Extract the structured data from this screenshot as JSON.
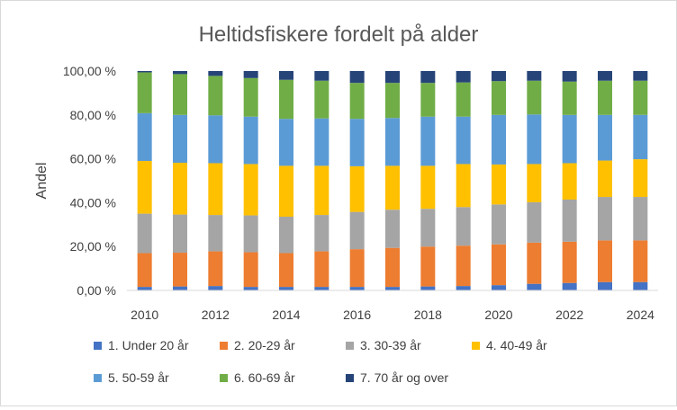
{
  "chart_data": {
    "type": "bar",
    "stacked": true,
    "title": "Heltidsfiskere fordelt på alder",
    "ylabel": "Andel",
    "xlabel": "",
    "ylim": [
      0,
      100
    ],
    "y_ticks": [
      "0,00 %",
      "20,00 %",
      "40,00 %",
      "60,00 %",
      "80,00 %",
      "100,00 %"
    ],
    "x_tick_labels": [
      "2010",
      "2012",
      "2014",
      "2016",
      "2018",
      "2020",
      "2022",
      "2024"
    ],
    "grid": false,
    "legend_position": "bottom",
    "categories": [
      "2010",
      "2011",
      "2012",
      "2013",
      "2014",
      "2015",
      "2016",
      "2017",
      "2018",
      "2019",
      "2020",
      "2021",
      "2022",
      "2023",
      "2024"
    ],
    "series": [
      {
        "name": "1. Under 20 år",
        "color": "#4472C4",
        "values": [
          1.6,
          1.8,
          2.0,
          1.6,
          1.6,
          1.6,
          1.6,
          1.6,
          1.8,
          2.0,
          2.4,
          3.0,
          3.4,
          3.8,
          3.8
        ]
      },
      {
        "name": "2. 20-29 år",
        "color": "#ED7D31",
        "values": [
          15.4,
          15.4,
          15.8,
          15.8,
          15.4,
          16.2,
          17.2,
          17.8,
          18.2,
          18.4,
          18.6,
          18.8,
          18.8,
          19.0,
          19.0
        ]
      },
      {
        "name": "3. 30-39 år",
        "color": "#A5A5A5",
        "values": [
          18.0,
          17.4,
          16.6,
          16.8,
          16.6,
          16.6,
          17.0,
          17.4,
          17.2,
          17.6,
          18.2,
          18.4,
          19.2,
          19.8,
          19.8
        ]
      },
      {
        "name": "4. 40-49 år",
        "color": "#FFC000",
        "values": [
          24.0,
          23.6,
          23.6,
          23.4,
          23.2,
          22.4,
          20.8,
          20.0,
          19.6,
          19.6,
          18.2,
          17.4,
          16.6,
          16.6,
          17.2
        ]
      },
      {
        "name": "5. 50-59 år",
        "color": "#5B9BD5",
        "values": [
          21.8,
          21.8,
          21.8,
          21.6,
          21.4,
          21.6,
          21.6,
          21.8,
          22.4,
          21.6,
          22.6,
          22.6,
          22.0,
          20.8,
          20.2
        ]
      },
      {
        "name": "6. 60-69 år",
        "color": "#70AD47",
        "values": [
          18.6,
          18.6,
          18.0,
          17.6,
          17.8,
          17.2,
          16.4,
          16.0,
          15.4,
          15.6,
          15.4,
          15.4,
          15.2,
          15.6,
          15.6
        ]
      },
      {
        "name": "7. 70 år og over",
        "color": "#264478",
        "values": [
          0.6,
          1.4,
          2.2,
          3.2,
          4.0,
          4.4,
          5.4,
          5.4,
          5.4,
          5.2,
          4.6,
          4.4,
          4.8,
          4.4,
          4.4
        ]
      }
    ]
  }
}
